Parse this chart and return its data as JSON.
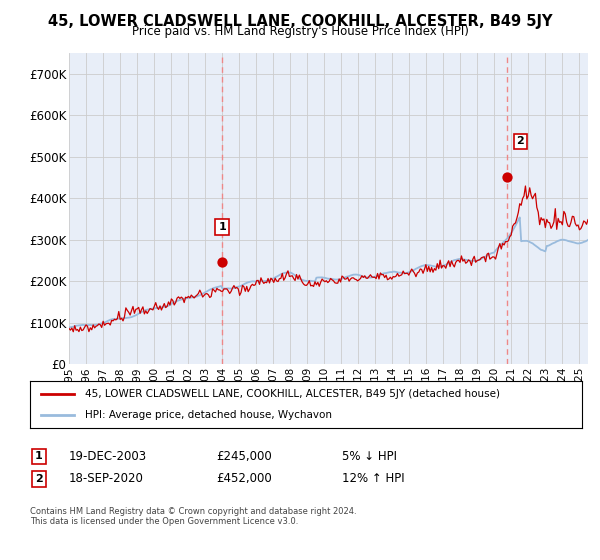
{
  "title": "45, LOWER CLADSWELL LANE, COOKHILL, ALCESTER, B49 5JY",
  "subtitle": "Price paid vs. HM Land Registry's House Price Index (HPI)",
  "ylabel_ticks": [
    "£0",
    "£100K",
    "£200K",
    "£300K",
    "£400K",
    "£500K",
    "£600K",
    "£700K"
  ],
  "ylim": [
    0,
    750000
  ],
  "xlim_start": 1995.0,
  "xlim_end": 2025.5,
  "sale1_x": 2004.0,
  "sale1_y": 245000,
  "sale1_label": "1",
  "sale2_x": 2020.72,
  "sale2_y": 452000,
  "sale2_label": "2",
  "legend_line1": "45, LOWER CLADSWELL LANE, COOKHILL, ALCESTER, B49 5JY (detached house)",
  "legend_line2": "HPI: Average price, detached house, Wychavon",
  "info1_label": "1",
  "info1_date": "19-DEC-2003",
  "info1_price": "£245,000",
  "info1_pct": "5% ↓ HPI",
  "info2_label": "2",
  "info2_date": "18-SEP-2020",
  "info2_price": "£452,000",
  "info2_pct": "12% ↑ HPI",
  "footer": "Contains HM Land Registry data © Crown copyright and database right 2024.\nThis data is licensed under the Open Government Licence v3.0.",
  "color_red": "#cc0000",
  "color_blue": "#99bbdd",
  "color_dashed": "#ee8888",
  "bg_plot": "#e8eef8",
  "background_color": "#ffffff",
  "grid_color": "#cccccc"
}
